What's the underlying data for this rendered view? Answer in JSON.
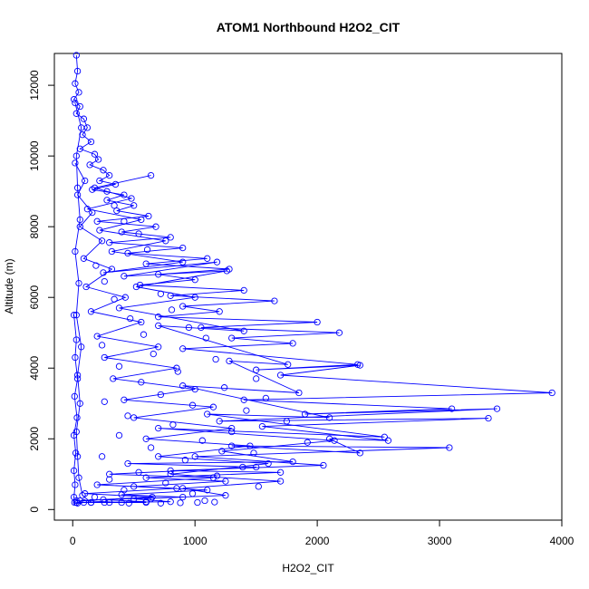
{
  "chart_data": {
    "type": "scatter",
    "title": "ATOM1 Northbound H2O2_CIT",
    "xlabel": "H2O2_CIT",
    "ylabel": "Altitude (m)",
    "xlim": [
      -150,
      4000
    ],
    "ylim": [
      -300,
      12900
    ],
    "xticks": [
      0,
      1000,
      2000,
      3000,
      4000
    ],
    "yticks": [
      0,
      2000,
      4000,
      6000,
      8000,
      10000,
      12000
    ],
    "grid": false,
    "legend": "none",
    "series_color": "#0000ff",
    "series": [
      {
        "lines": true,
        "points": [
          [
            30,
            12850
          ],
          [
            40,
            12400
          ],
          [
            20,
            12050
          ],
          [
            50,
            11800
          ],
          [
            10,
            11600
          ],
          [
            60,
            11400
          ],
          [
            30,
            11200
          ],
          [
            90,
            11050
          ],
          [
            120,
            10800
          ],
          [
            80,
            10600
          ],
          [
            150,
            10400
          ],
          [
            60,
            10200
          ],
          [
            180,
            10050
          ],
          [
            210,
            9900
          ],
          [
            140,
            9750
          ],
          [
            250,
            9600
          ],
          [
            300,
            9450
          ],
          [
            220,
            9300
          ],
          [
            350,
            9200
          ],
          [
            160,
            9050
          ],
          [
            420,
            8900
          ],
          [
            280,
            8750
          ],
          [
            500,
            8600
          ],
          [
            360,
            8450
          ],
          [
            620,
            8300
          ],
          [
            200,
            8150
          ],
          [
            680,
            8000
          ],
          [
            400,
            7850
          ],
          [
            800,
            7700
          ],
          [
            300,
            7550
          ],
          [
            900,
            7400
          ],
          [
            450,
            7250
          ],
          [
            1100,
            7100
          ],
          [
            600,
            6950
          ],
          [
            1280,
            6800
          ],
          [
            700,
            6650
          ],
          [
            1000,
            6500
          ],
          [
            550,
            6350
          ],
          [
            1400,
            6200
          ],
          [
            800,
            6050
          ],
          [
            1650,
            5900
          ],
          [
            900,
            5750
          ],
          [
            1200,
            5600
          ],
          [
            700,
            5450
          ],
          [
            2000,
            5300
          ],
          [
            1050,
            5150
          ],
          [
            2180,
            5000
          ],
          [
            1300,
            4850
          ],
          [
            1800,
            4700
          ],
          [
            900,
            4550
          ],
          [
            2330,
            4100
          ],
          [
            1500,
            3950
          ],
          [
            2350,
            4080
          ],
          [
            1700,
            3800
          ],
          [
            3920,
            3300
          ],
          [
            1400,
            3100
          ],
          [
            3100,
            2850
          ],
          [
            1900,
            2700
          ],
          [
            3470,
            2850
          ],
          [
            1200,
            2500
          ],
          [
            3400,
            2580
          ],
          [
            1550,
            2350
          ],
          [
            2580,
            1950
          ],
          [
            2100,
            2000
          ],
          [
            2350,
            1600
          ],
          [
            1300,
            1800
          ],
          [
            3080,
            1750
          ],
          [
            1000,
            1500
          ],
          [
            2050,
            1250
          ],
          [
            800,
            1100
          ],
          [
            1700,
            1050
          ],
          [
            600,
            900
          ],
          [
            1250,
            800
          ],
          [
            500,
            650
          ],
          [
            1100,
            550
          ],
          [
            400,
            420
          ],
          [
            900,
            350
          ],
          [
            250,
            280
          ],
          [
            600,
            220
          ],
          [
            150,
            200
          ],
          [
            80,
            400
          ],
          [
            50,
            900
          ],
          [
            40,
            1500
          ],
          [
            30,
            2200
          ],
          [
            60,
            3000
          ],
          [
            40,
            3800
          ],
          [
            70,
            4600
          ],
          [
            30,
            5500
          ],
          [
            50,
            6400
          ],
          [
            20,
            7300
          ],
          [
            60,
            8200
          ],
          [
            40,
            9100
          ],
          [
            30,
            10000
          ],
          [
            70,
            10800
          ],
          [
            20,
            11500
          ]
        ]
      },
      {
        "lines": true,
        "points": [
          [
            640,
            9450
          ],
          [
            180,
            9100
          ],
          [
            480,
            8800
          ],
          [
            120,
            8500
          ],
          [
            560,
            8200
          ],
          [
            220,
            7900
          ],
          [
            760,
            7600
          ],
          [
            320,
            7300
          ],
          [
            900,
            7000
          ],
          [
            250,
            6700
          ],
          [
            1180,
            7000
          ],
          [
            420,
            6600
          ],
          [
            1260,
            6750
          ],
          [
            520,
            6300
          ],
          [
            1000,
            6000
          ],
          [
            380,
            5700
          ],
          [
            1400,
            5050
          ],
          [
            700,
            5200
          ],
          [
            1760,
            4100
          ],
          [
            1280,
            4200
          ],
          [
            1850,
            3300
          ],
          [
            900,
            3500
          ],
          [
            2100,
            2600
          ],
          [
            1100,
            2700
          ],
          [
            2550,
            2050
          ],
          [
            700,
            2300
          ],
          [
            2140,
            1950
          ],
          [
            1220,
            1650
          ],
          [
            1800,
            1350
          ],
          [
            450,
            1300
          ],
          [
            1500,
            1200
          ],
          [
            300,
            1000
          ],
          [
            1150,
            900
          ],
          [
            200,
            700
          ],
          [
            850,
            600
          ],
          [
            100,
            450
          ],
          [
            650,
            350
          ],
          [
            60,
            250
          ],
          [
            400,
            200
          ],
          [
            30,
            200
          ]
        ]
      },
      {
        "lines": true,
        "points": [
          [
            20,
            9800
          ],
          [
            100,
            9300
          ],
          [
            40,
            8900
          ],
          [
            160,
            8400
          ],
          [
            60,
            8000
          ],
          [
            240,
            7600
          ],
          [
            90,
            7100
          ],
          [
            320,
            6800
          ],
          [
            110,
            6300
          ],
          [
            430,
            6000
          ],
          [
            150,
            5600
          ],
          [
            560,
            5300
          ],
          [
            200,
            4900
          ],
          [
            700,
            4600
          ],
          [
            260,
            4300
          ],
          [
            850,
            4000
          ],
          [
            330,
            3700
          ],
          [
            1000,
            3400
          ],
          [
            420,
            3100
          ],
          [
            1150,
            2900
          ],
          [
            500,
            2600
          ],
          [
            1300,
            2300
          ],
          [
            600,
            2000
          ],
          [
            1450,
            1800
          ],
          [
            700,
            1500
          ],
          [
            1600,
            1300
          ],
          [
            800,
            1000
          ],
          [
            1700,
            800
          ],
          [
            900,
            600
          ],
          [
            1250,
            400
          ],
          [
            500,
            300
          ],
          [
            800,
            220
          ],
          [
            300,
            200
          ],
          [
            600,
            200
          ],
          [
            150,
            200
          ]
        ]
      },
      {
        "lines": true,
        "points": [
          [
            10,
            5500
          ],
          [
            30,
            4800
          ],
          [
            20,
            4300
          ],
          [
            40,
            3700
          ],
          [
            15,
            3200
          ],
          [
            35,
            2600
          ],
          [
            10,
            2100
          ],
          [
            25,
            1600
          ],
          [
            10,
            1100
          ],
          [
            20,
            700
          ],
          [
            10,
            350
          ],
          [
            15,
            200
          ],
          [
            40,
            180
          ],
          [
            90,
            200
          ],
          [
            30,
            250
          ]
        ]
      },
      {
        "lines": false,
        "points": [
          [
            280,
            9000
          ],
          [
            340,
            8600
          ],
          [
            420,
            8150
          ],
          [
            540,
            7800
          ],
          [
            610,
            7350
          ],
          [
            190,
            6900
          ],
          [
            260,
            6450
          ],
          [
            720,
            6100
          ],
          [
            340,
            5950
          ],
          [
            810,
            5650
          ],
          [
            470,
            5400
          ],
          [
            950,
            5150
          ],
          [
            580,
            4950
          ],
          [
            1090,
            4850
          ],
          [
            240,
            4650
          ],
          [
            660,
            4400
          ],
          [
            1170,
            4250
          ],
          [
            380,
            4050
          ],
          [
            860,
            3900
          ],
          [
            1500,
            3700
          ],
          [
            560,
            3600
          ],
          [
            1240,
            3450
          ],
          [
            720,
            3250
          ],
          [
            1580,
            3150
          ],
          [
            260,
            3050
          ],
          [
            980,
            2950
          ],
          [
            1420,
            2800
          ],
          [
            450,
            2650
          ],
          [
            1750,
            2500
          ],
          [
            820,
            2400
          ],
          [
            1300,
            2200
          ],
          [
            380,
            2100
          ],
          [
            1060,
            1950
          ],
          [
            1920,
            1900
          ],
          [
            640,
            1750
          ],
          [
            1480,
            1600
          ],
          [
            240,
            1500
          ],
          [
            920,
            1400
          ],
          [
            1390,
            1200
          ],
          [
            540,
            1050
          ],
          [
            1180,
            950
          ],
          [
            300,
            850
          ],
          [
            760,
            750
          ],
          [
            1520,
            650
          ],
          [
            420,
            550
          ],
          [
            980,
            450
          ],
          [
            180,
            350
          ],
          [
            640,
            300
          ],
          [
            1080,
            250
          ],
          [
            260,
            200
          ],
          [
            460,
            180
          ],
          [
            720,
            180
          ],
          [
            880,
            190
          ],
          [
            1020,
            200
          ],
          [
            1160,
            210
          ]
        ]
      }
    ]
  }
}
